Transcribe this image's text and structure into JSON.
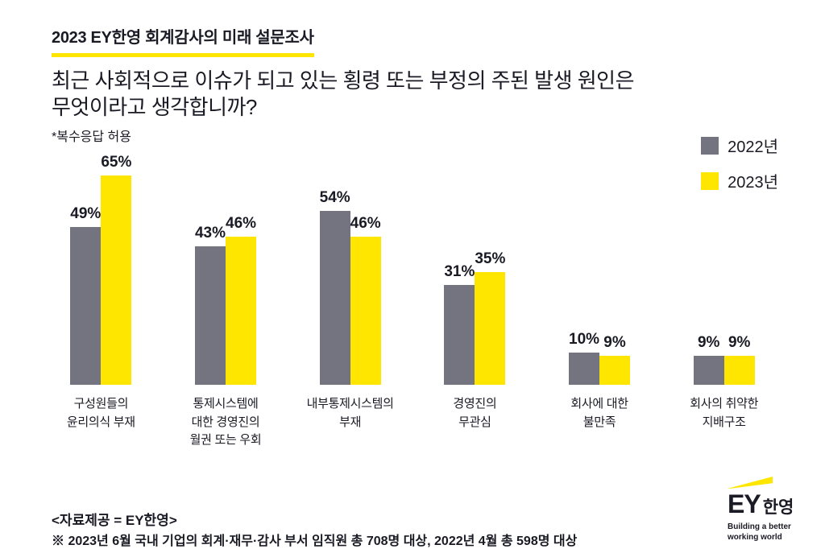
{
  "colors": {
    "accent_yellow": "#FFE600",
    "bar_gray": "#747480",
    "text_dark": "#1a1a24"
  },
  "header": {
    "label": "2023 EY한영 회계감사의 미래 설문조사"
  },
  "title": {
    "lines": [
      "최근 사회적으로 이슈가 되고 있는 횡령 또는 부정의 주된 발생 원인은",
      "무엇이라고 생각합니까?"
    ],
    "note": "*복수응답 허용"
  },
  "chart_data": {
    "type": "bar",
    "title": "최근 사회적으로 이슈가 되고 있는 횡령 또는 부정의 주된 발생 원인은 무엇이라고 생각합니까?",
    "categories": [
      "구성원들의\n윤리의식 부재",
      "통제시스템에\n대한 경영진의\n월권 또는 우회",
      "내부통제시스템의\n부재",
      "경영진의\n무관심",
      "회사에 대한\n불만족",
      "회사의 취약한\n지배구조"
    ],
    "series": [
      {
        "name": "2022년",
        "color": "#747480",
        "values": [
          49,
          43,
          54,
          31,
          10,
          9
        ]
      },
      {
        "name": "2023년",
        "color": "#FFE600",
        "values": [
          65,
          46,
          46,
          35,
          9,
          9
        ]
      }
    ],
    "value_suffix": "%",
    "ylim": [
      0,
      70
    ],
    "grid": false,
    "legend_position": "top-right"
  },
  "footer": {
    "source": "<자료제공 = EY한영>",
    "note": "※ 2023년 6월 국내 기업의 회계·재무·감사 부서 임직원 총 708명 대상, 2022년 4월 총 598명 대상"
  },
  "logo": {
    "ey": "EY",
    "kr": "한영",
    "tagline": "Building a better\nworking world"
  }
}
